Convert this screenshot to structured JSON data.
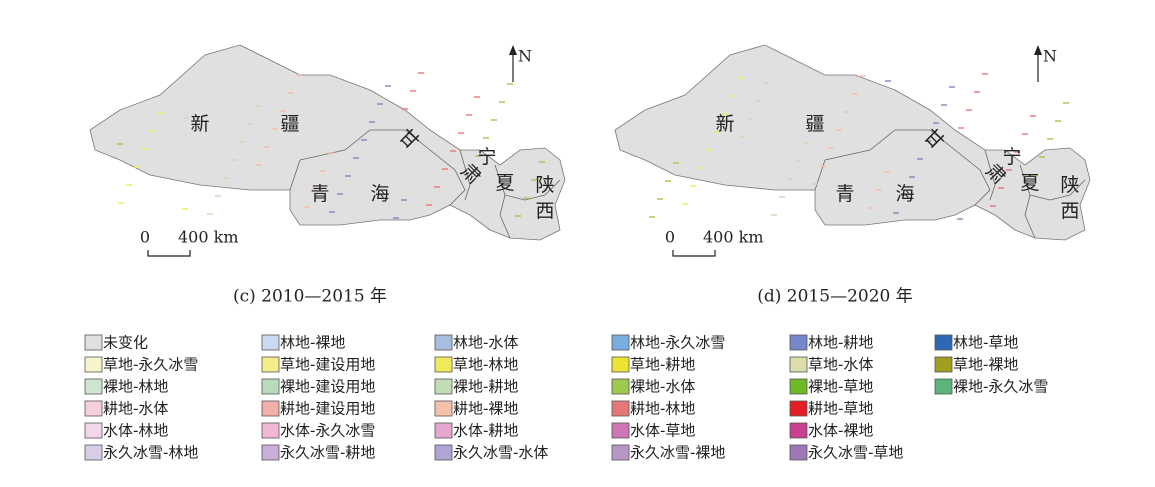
{
  "maps": [
    {
      "caption": "(c) 2010—2015 年",
      "labels": [
        "新",
        "疆",
        "青",
        "海",
        "甘",
        "肃",
        "宁",
        "夏",
        "陕",
        "西"
      ],
      "north": "N",
      "scale": {
        "start": "0",
        "end": "400 km"
      }
    },
    {
      "caption": "(d) 2015—2020 年",
      "labels": [
        "新",
        "疆",
        "青",
        "海",
        "甘",
        "肃",
        "宁",
        "夏",
        "陕",
        "西"
      ],
      "north": "N",
      "scale": {
        "start": "0",
        "end": "400 km"
      }
    }
  ],
  "legend": {
    "rows": [
      [
        {
          "label": "未变化",
          "color": "#e0e0e0"
        },
        {
          "label": "林地-裸地",
          "color": "#c9d9ef"
        },
        {
          "label": "林地-水体",
          "color": "#a9bde0"
        },
        {
          "label": "林地-永久冰雪",
          "color": "#79aee0"
        },
        {
          "label": "林地-耕地",
          "color": "#7387c9"
        },
        {
          "label": "林地-草地",
          "color": "#2f67b5"
        }
      ],
      [
        {
          "label": "草地-永久冰雪",
          "color": "#f7f4cc"
        },
        {
          "label": "草地-建设用地",
          "color": "#f4ed8a"
        },
        {
          "label": "草地-林地",
          "color": "#f0ea5a"
        },
        {
          "label": "草地-耕地",
          "color": "#ece332"
        },
        {
          "label": "草地-水体",
          "color": "#ddddaa"
        },
        {
          "label": "草地-裸地",
          "color": "#a09e22"
        }
      ],
      [
        {
          "label": "裸地-林地",
          "color": "#cfe5cf"
        },
        {
          "label": "裸地-建设用地",
          "color": "#b7dcbc"
        },
        {
          "label": "裸地-耕地",
          "color": "#c2ddb3"
        },
        {
          "label": "裸地-水体",
          "color": "#9cc94e"
        },
        {
          "label": "裸地-草地",
          "color": "#6fb827"
        },
        {
          "label": "裸地-永久冰雪",
          "color": "#5bb57a"
        }
      ],
      [
        {
          "label": "耕地-水体",
          "color": "#f5cfdc"
        },
        {
          "label": "耕地-建设用地",
          "color": "#f2b0a8"
        },
        {
          "label": "耕地-裸地",
          "color": "#f3c1aa"
        },
        {
          "label": "耕地-林地",
          "color": "#e57779"
        },
        {
          "label": "耕地-草地",
          "color": "#e41e26"
        }
      ],
      [
        {
          "label": "水体-林地",
          "color": "#f3d6e8"
        },
        {
          "label": "水体-永久冰雪",
          "color": "#f1b8d6"
        },
        {
          "label": "水体-耕地",
          "color": "#e5a7d0"
        },
        {
          "label": "水体-草地",
          "color": "#cf75b4"
        },
        {
          "label": "水体-裸地",
          "color": "#c8408f"
        }
      ],
      [
        {
          "label": "永久冰雪-林地",
          "color": "#d8cde6"
        },
        {
          "label": "永久冰雪-耕地",
          "color": "#c9b0da"
        },
        {
          "label": "永久冰雪-水体",
          "color": "#b1a3d3"
        },
        {
          "label": "永久冰雪-裸地",
          "color": "#b796c8"
        },
        {
          "label": "永久冰雪-草地",
          "color": "#9d78b8"
        }
      ]
    ]
  }
}
